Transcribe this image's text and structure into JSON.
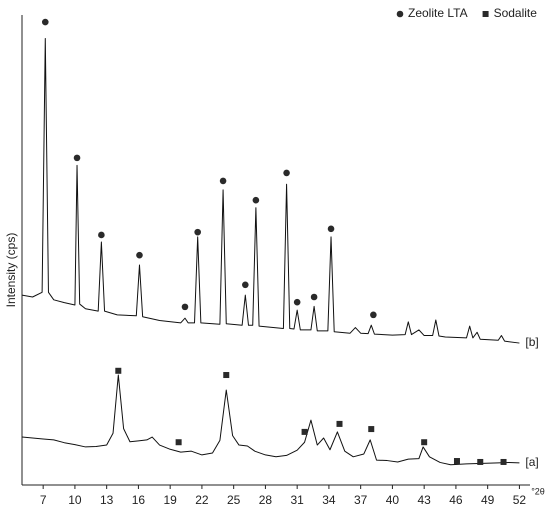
{
  "chart_data": {
    "type": "line",
    "x_label": "°2θ",
    "y_label": "Intensity (cps)",
    "xlim": [
      5,
      53
    ],
    "ylim": [
      0,
      100
    ],
    "xticks": [
      7,
      10,
      13,
      16,
      19,
      22,
      25,
      28,
      31,
      34,
      37,
      40,
      43,
      46,
      49,
      52
    ],
    "legend": "top-right",
    "series": [
      {
        "name": "[b]",
        "color": "#111111",
        "x": [
          5,
          6,
          6.9,
          7.2,
          7.5,
          8,
          9,
          10,
          10.2,
          10.45,
          11,
          12.2,
          12.5,
          12.8,
          14,
          15.8,
          16.1,
          16.4,
          18,
          20,
          20.4,
          20.7,
          21.3,
          21.6,
          21.9,
          23.7,
          24,
          24.3,
          25.8,
          26.1,
          26.4,
          26.8,
          27.1,
          27.4,
          29.7,
          30,
          30.3,
          30.7,
          31,
          31.3,
          32.3,
          32.6,
          32.9,
          33.9,
          34.2,
          34.5,
          36,
          36.5,
          37,
          37.7,
          38,
          38.3,
          40,
          41.2,
          41.5,
          41.8,
          42.5,
          43,
          43.8,
          44.1,
          44.4,
          45,
          47,
          47.3,
          47.6,
          48,
          48.3,
          50,
          50.3,
          50.6,
          52
        ],
        "values": [
          40.4,
          40,
          41,
          95,
          41,
          39.4,
          38.8,
          38.3,
          68,
          38.5,
          37.5,
          37,
          51.7,
          37,
          36.2,
          36,
          46.8,
          35.8,
          35,
          34.5,
          35.5,
          34.5,
          34.5,
          52.8,
          34.5,
          34.2,
          62.8,
          34.3,
          34,
          40.4,
          34,
          34,
          59,
          33.8,
          33.3,
          64,
          33.3,
          33.2,
          37.2,
          33,
          33,
          38,
          32.8,
          32.8,
          52.8,
          32.6,
          32.3,
          33.5,
          32.3,
          32.2,
          34,
          32.1,
          31.9,
          32,
          34.7,
          32,
          33,
          31.8,
          31.8,
          35.1,
          31.7,
          31.5,
          31.3,
          33.8,
          31.3,
          32.5,
          31,
          30.8,
          31.8,
          30.6,
          30.2
        ]
      },
      {
        "name": "[a]",
        "color": "#111111",
        "x": [
          5,
          6,
          7,
          8,
          9,
          10,
          11,
          12,
          13,
          13.6,
          14.1,
          14.6,
          15.2,
          16,
          16.8,
          17.3,
          18,
          19,
          20,
          21,
          22,
          23,
          23.7,
          24.3,
          24.9,
          25.5,
          26.3,
          27,
          28,
          29,
          30,
          31,
          31.7,
          32.3,
          32.9,
          33.5,
          34.1,
          34.8,
          35.5,
          36.3,
          37.3,
          37.9,
          38.5,
          39.5,
          40.5,
          41.5,
          42.5,
          42.9,
          43.5,
          44.5,
          45.5,
          47,
          48.5,
          50,
          51,
          52
        ],
        "values": [
          10.2,
          10,
          9.8,
          9.6,
          9,
          8.6,
          8.1,
          8.2,
          8.5,
          11,
          23.4,
          12,
          9.2,
          9.4,
          9.6,
          10.2,
          8.5,
          7.6,
          7,
          7.2,
          6.4,
          6.8,
          9.5,
          20.2,
          10.5,
          8.5,
          8.3,
          7.2,
          6.4,
          6,
          6.3,
          7.4,
          9.1,
          13.8,
          8.5,
          10,
          7.5,
          11.3,
          7.2,
          6,
          6.6,
          9.6,
          5.3,
          5.2,
          4.9,
          5.5,
          5.6,
          8.1,
          6,
          4.8,
          4.3,
          4.5,
          4.6,
          4.7,
          4.8,
          4.7
        ]
      },
      {
        "name": "Zeolite LTA",
        "color": "#2a2a2a",
        "marker": "circle",
        "x": [
          7.2,
          10.2,
          12.5,
          16.1,
          20.4,
          21.6,
          24,
          26.1,
          27.1,
          30,
          31,
          32.6,
          34.2,
          38.2
        ],
        "values": [
          98.5,
          69.6,
          53.2,
          48.9,
          37.9,
          53.8,
          64.7,
          42.6,
          60.6,
          66.4,
          38.9,
          40,
          54.5,
          36.2
        ]
      },
      {
        "name": "Sodalite",
        "color": "#2a2a2a",
        "marker": "square",
        "x": [
          14.1,
          19.8,
          24.3,
          31.7,
          35,
          38,
          43,
          46.1,
          48.3,
          50.5
        ],
        "values": [
          24.3,
          9.1,
          23.4,
          11.3,
          13,
          11.9,
          9.1,
          5.1,
          4.9,
          4.9
        ]
      }
    ]
  }
}
